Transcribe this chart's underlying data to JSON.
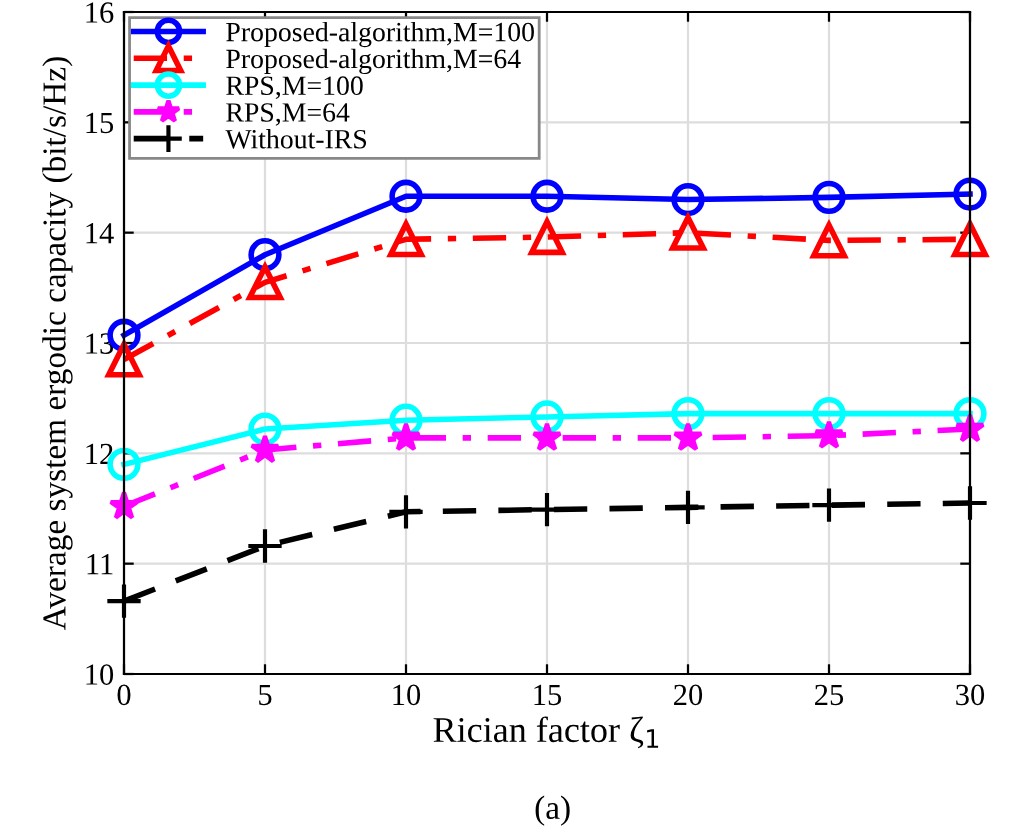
{
  "chart_data": {
    "type": "line",
    "xlabel": "Rician factor ζ$_{1}$",
    "ylabel": "Average system ergodic capacity (bit/s/Hz)",
    "x": [
      0,
      5,
      10,
      15,
      20,
      25,
      30
    ],
    "xlim": [
      0,
      30
    ],
    "xticks": [
      0,
      5,
      10,
      15,
      20,
      25,
      30
    ],
    "ylim": [
      10,
      16
    ],
    "yticks": [
      10,
      11,
      12,
      13,
      14,
      15,
      16
    ],
    "grid": true,
    "legend": "top left",
    "annotations": [
      "(a)"
    ],
    "series": [
      {
        "name": "Proposed-algorithm,M=100",
        "color": "#0000ff",
        "marker": "circle",
        "line_style": "solid",
        "values": [
          13.07,
          13.8,
          14.33,
          14.33,
          14.3,
          14.32,
          14.35
        ]
      },
      {
        "name": "Proposed-algorithm,M=64",
        "color": "#ff0000",
        "marker": "triangle",
        "line_style": "dashdot",
        "values": [
          12.85,
          13.55,
          13.94,
          13.96,
          14.0,
          13.93,
          13.94
        ]
      },
      {
        "name": "RPS,M=100",
        "color": "#00ffff",
        "marker": "circle",
        "line_style": "solid",
        "values": [
          11.9,
          12.22,
          12.3,
          12.33,
          12.36,
          12.36,
          12.36
        ]
      },
      {
        "name": "RPS,M=64",
        "color": "#ff00ff",
        "marker": "star",
        "line_style": "dashdot",
        "values": [
          11.52,
          12.03,
          12.14,
          12.14,
          12.14,
          12.16,
          12.22
        ]
      },
      {
        "name": "Without-IRS",
        "color": "#000000",
        "marker": "cross",
        "line_style": "dashed",
        "values": [
          10.66,
          11.16,
          11.47,
          11.49,
          11.51,
          11.53,
          11.55
        ]
      }
    ]
  }
}
